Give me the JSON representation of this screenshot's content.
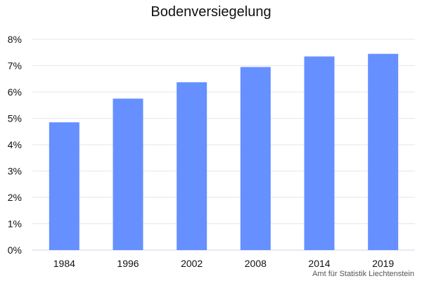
{
  "chart_data": {
    "type": "bar",
    "title": "Bodenversiegelung",
    "xlabel": "",
    "ylabel": "",
    "categories": [
      "1984",
      "1996",
      "2002",
      "2008",
      "2014",
      "2019"
    ],
    "series": [
      {
        "values": [
          4.85,
          5.75,
          6.37,
          6.95,
          7.35,
          7.45
        ]
      }
    ],
    "y_unit": "%",
    "ylim": [
      0,
      8
    ],
    "y_ticks": [
      0,
      1,
      2,
      3,
      4,
      5,
      6,
      7,
      8
    ],
    "y_tick_labels": [
      "0%",
      "1%",
      "2%",
      "3%",
      "4%",
      "5%",
      "6%",
      "7%",
      "8%"
    ],
    "grid": true,
    "legend": "none",
    "colors": {
      "bar": "#6690ff",
      "grid": "#e6e6e6",
      "axis": "#ccd6eb"
    }
  },
  "credit": "Amt für Statistik Liechtenstein"
}
